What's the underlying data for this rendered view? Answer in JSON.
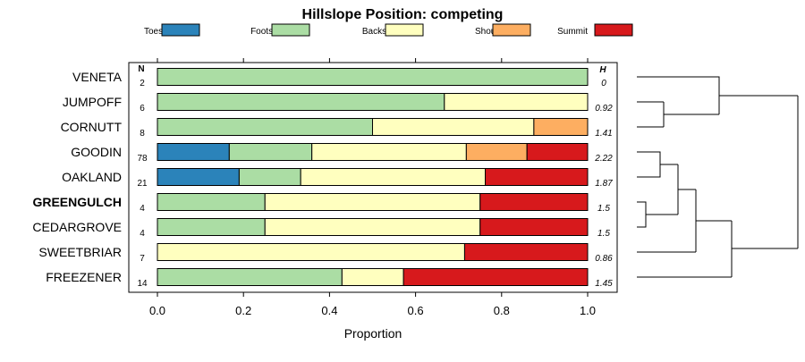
{
  "chart_data": {
    "type": "bar",
    "orientation": "horizontal",
    "stacked": true,
    "title": "Hillslope Position: competing",
    "xlabel": "Proportion",
    "xlim": [
      0,
      1
    ],
    "xticks": [
      "0.0",
      "0.2",
      "0.4",
      "0.6",
      "0.8",
      "1.0"
    ],
    "n_header": "N",
    "h_header": "H",
    "segments": [
      {
        "name": "Toeslope",
        "color": "#2B83BA"
      },
      {
        "name": "Footslope",
        "color": "#ABDDA4"
      },
      {
        "name": "Backslope",
        "color": "#FFFFBF"
      },
      {
        "name": "Shoulder",
        "color": "#FDAE61"
      },
      {
        "name": "Summit",
        "color": "#D7191C"
      }
    ],
    "rows": [
      {
        "label": "VENETA",
        "n": "2",
        "h": "0",
        "bold": false,
        "values": [
          0,
          1.0,
          0,
          0,
          0
        ]
      },
      {
        "label": "JUMPOFF",
        "n": "6",
        "h": "0.92",
        "bold": false,
        "values": [
          0,
          0.667,
          0.333,
          0,
          0
        ]
      },
      {
        "label": "CORNUTT",
        "n": "8",
        "h": "1.41",
        "bold": false,
        "values": [
          0,
          0.5,
          0.375,
          0.125,
          0
        ]
      },
      {
        "label": "GOODIN",
        "n": "78",
        "h": "2.22",
        "bold": false,
        "values": [
          0.167,
          0.192,
          0.359,
          0.141,
          0.141
        ]
      },
      {
        "label": "OAKLAND",
        "n": "21",
        "h": "1.87",
        "bold": false,
        "values": [
          0.19,
          0.143,
          0.429,
          0,
          0.238
        ]
      },
      {
        "label": "GREENGULCH",
        "n": "4",
        "h": "1.5",
        "bold": true,
        "values": [
          0,
          0.25,
          0.5,
          0,
          0.25
        ]
      },
      {
        "label": "CEDARGROVE",
        "n": "4",
        "h": "1.5",
        "bold": false,
        "values": [
          0,
          0.25,
          0.5,
          0,
          0.25
        ]
      },
      {
        "label": "SWEETBRIAR",
        "n": "7",
        "h": "0.86",
        "bold": false,
        "values": [
          0,
          0,
          0.714,
          0,
          0.286
        ]
      },
      {
        "label": "FREEZENER",
        "n": "14",
        "h": "1.45",
        "bold": false,
        "values": [
          0,
          0.429,
          0.143,
          0,
          0.428
        ]
      }
    ],
    "dendrogram": true
  }
}
